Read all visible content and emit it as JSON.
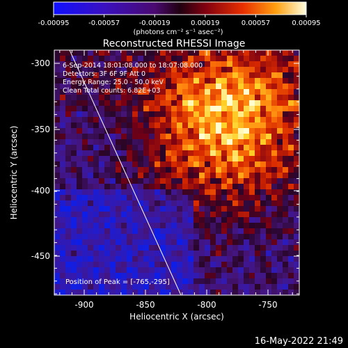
{
  "colorbar": {
    "tick_labels": [
      "-0.00095",
      "-0.00057",
      "-0.00019",
      "0.00019",
      "0.00057",
      "0.00095"
    ],
    "units_label": "(photons cm⁻² s⁻¹ asec⁻²)"
  },
  "plot": {
    "title": "Reconstructed RHESSI Image",
    "annotations": [
      "6-Sep-2014 18:01:08.000 to 18:07:08.000",
      "Detectors: 3F 6F 9F  Att 0",
      "Energy Range: 25.0 - 50.0 keV",
      "Clean    Total counts: 6.82E+03"
    ],
    "peak_label": "Position of Peak = [-765,-295]",
    "x_axis": {
      "label": "Heliocentric X (arcsec)",
      "tick_labels": [
        "-900",
        "-850",
        "-800",
        "-750"
      ]
    },
    "y_axis": {
      "label": "Heliocentric Y (arcsec)",
      "tick_labels": [
        "-300",
        "-350",
        "-400",
        "-450"
      ]
    }
  },
  "footer": {
    "timestamp": "16-May-2022 21:49"
  }
}
